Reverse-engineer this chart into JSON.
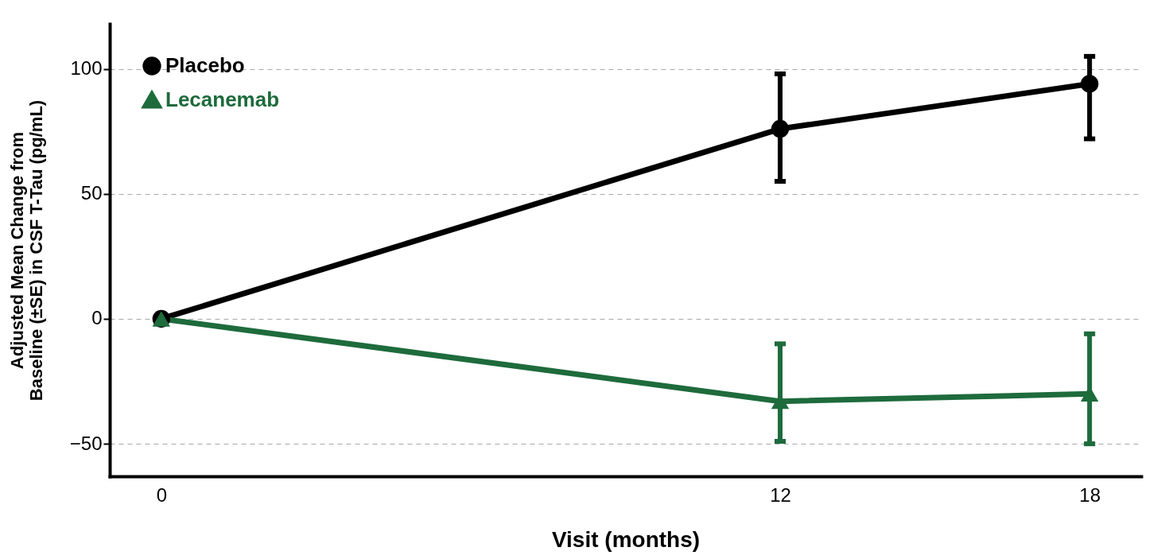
{
  "chart_data": {
    "type": "line",
    "xlabel": "Visit (months)",
    "ylabel": "Adjusted Mean Change from\nBaseline (±SE) in CSF T-Tau (pg/mL)",
    "x": [
      0,
      12,
      18
    ],
    "series": [
      {
        "name": "Placebo",
        "color": "#000000",
        "marker": "circle",
        "values": [
          0,
          76,
          94
        ],
        "errors": [
          null,
          [
            55,
            98
          ],
          [
            72,
            105
          ]
        ]
      },
      {
        "name": "Lecanemab",
        "color": "#1e6b3c",
        "marker": "triangle",
        "values": [
          0,
          -33,
          -30
        ],
        "errors": [
          null,
          [
            -49,
            -10
          ],
          [
            -50,
            -6
          ]
        ]
      }
    ],
    "xlim": [
      -1,
      19
    ],
    "xticks": [
      0,
      12,
      18
    ],
    "ylim": [
      -63,
      118
    ],
    "yticks": [
      -50,
      0,
      50,
      100
    ],
    "grid": "y",
    "legend": "top left",
    "line_style": "solid"
  }
}
